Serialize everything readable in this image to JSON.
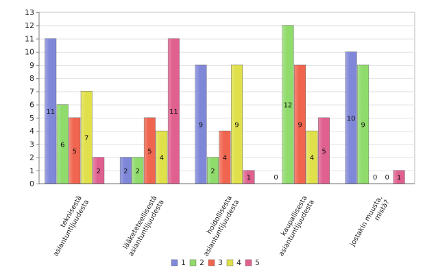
{
  "chart_data": {
    "type": "bar",
    "title": "",
    "xlabel": "",
    "ylabel": "",
    "ylim": [
      0,
      13
    ],
    "yticks": [
      0,
      1,
      2,
      3,
      4,
      5,
      6,
      7,
      8,
      9,
      10,
      11,
      12,
      13
    ],
    "grid": true,
    "legend_position": "bottom",
    "categories": [
      [
        "teknisestä",
        "asiantuntijuudesta"
      ],
      [
        "lääketeteellisestä",
        "asiantuntijuudesta"
      ],
      [
        "hoidollisesta",
        "asiantuntijuudesta"
      ],
      [
        "kaupallisesta",
        "asiantuntijuudesta"
      ],
      [
        "jostakin muusta,",
        "mistä?"
      ]
    ],
    "series": [
      {
        "name": "1",
        "color": "#7f87d9",
        "values": [
          11,
          2,
          9,
          0,
          10
        ]
      },
      {
        "name": "2",
        "color": "#8fdb6b",
        "values": [
          6,
          2,
          2,
          12,
          9
        ]
      },
      {
        "name": "3",
        "color": "#f0654f",
        "values": [
          5,
          5,
          4,
          9,
          0
        ]
      },
      {
        "name": "4",
        "color": "#e0e04a",
        "values": [
          7,
          4,
          9,
          4,
          0
        ]
      },
      {
        "name": "5",
        "color": "#e0608f",
        "values": [
          2,
          11,
          1,
          5,
          1
        ]
      }
    ]
  }
}
